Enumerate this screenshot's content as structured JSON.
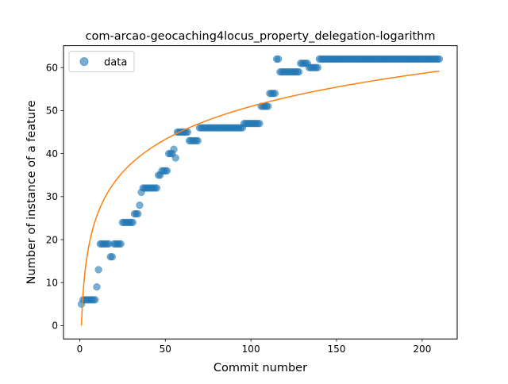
{
  "chart_data": {
    "type": "scatter",
    "title": "com-arcao-geocaching4locus_property_delegation-logarithm",
    "xlabel": "Commit number",
    "ylabel": "Number of instance of a feature",
    "xlim": [
      -9.45,
      220.45
    ],
    "ylim": [
      -3.1,
      65.1
    ],
    "xticks": [
      0,
      50,
      100,
      150,
      200
    ],
    "yticks": [
      0,
      10,
      20,
      30,
      40,
      50,
      60
    ],
    "grid": false,
    "legend": {
      "position": "top-left",
      "entries": [
        "data"
      ]
    },
    "colors": {
      "data": "#1f77b4",
      "fit": "#ff7f0e"
    },
    "series": [
      {
        "name": "data",
        "kind": "scatter",
        "points": [
          [
            1,
            5
          ],
          [
            2,
            6
          ],
          [
            3,
            6
          ],
          [
            4,
            6
          ],
          [
            5,
            6
          ],
          [
            6,
            6
          ],
          [
            7,
            6
          ],
          [
            8,
            6
          ],
          [
            9,
            6
          ],
          [
            10,
            9
          ],
          [
            11,
            13
          ],
          [
            12,
            19
          ],
          [
            13,
            19
          ],
          [
            14,
            19
          ],
          [
            15,
            19
          ],
          [
            16,
            19
          ],
          [
            17,
            19
          ],
          [
            18,
            16
          ],
          [
            19,
            16
          ],
          [
            20,
            19
          ],
          [
            21,
            19
          ],
          [
            22,
            19
          ],
          [
            23,
            19
          ],
          [
            24,
            19
          ],
          [
            25,
            24
          ],
          [
            26,
            24
          ],
          [
            27,
            24
          ],
          [
            28,
            24
          ],
          [
            29,
            24
          ],
          [
            30,
            24
          ],
          [
            31,
            24
          ],
          [
            32,
            26
          ],
          [
            33,
            26
          ],
          [
            34,
            26
          ],
          [
            35,
            28
          ],
          [
            36,
            31
          ],
          [
            37,
            32
          ],
          [
            38,
            32
          ],
          [
            39,
            32
          ],
          [
            40,
            32
          ],
          [
            41,
            32
          ],
          [
            42,
            32
          ],
          [
            43,
            32
          ],
          [
            44,
            32
          ],
          [
            45,
            32
          ],
          [
            46,
            35
          ],
          [
            47,
            35
          ],
          [
            48,
            36
          ],
          [
            49,
            36
          ],
          [
            50,
            36
          ],
          [
            51,
            36
          ],
          [
            52,
            40
          ],
          [
            53,
            40
          ],
          [
            54,
            40
          ],
          [
            55,
            41
          ],
          [
            56,
            39
          ],
          [
            57,
            45
          ],
          [
            58,
            45
          ],
          [
            59,
            45
          ],
          [
            60,
            45
          ],
          [
            61,
            45
          ],
          [
            62,
            45
          ],
          [
            63,
            45
          ],
          [
            64,
            43
          ],
          [
            65,
            43
          ],
          [
            66,
            43
          ],
          [
            67,
            43
          ],
          [
            68,
            43
          ],
          [
            69,
            43
          ],
          [
            70,
            46
          ],
          [
            71,
            46
          ],
          [
            72,
            46
          ],
          [
            73,
            46
          ],
          [
            74,
            46
          ],
          [
            75,
            46
          ],
          [
            76,
            46
          ],
          [
            77,
            46
          ],
          [
            78,
            46
          ],
          [
            79,
            46
          ],
          [
            80,
            46
          ],
          [
            81,
            46
          ],
          [
            82,
            46
          ],
          [
            83,
            46
          ],
          [
            84,
            46
          ],
          [
            85,
            46
          ],
          [
            86,
            46
          ],
          [
            87,
            46
          ],
          [
            88,
            46
          ],
          [
            89,
            46
          ],
          [
            90,
            46
          ],
          [
            91,
            46
          ],
          [
            92,
            46
          ],
          [
            93,
            46
          ],
          [
            94,
            46
          ],
          [
            95,
            46
          ],
          [
            96,
            47
          ],
          [
            97,
            47
          ],
          [
            98,
            47
          ],
          [
            99,
            47
          ],
          [
            100,
            47
          ],
          [
            101,
            47
          ],
          [
            102,
            47
          ],
          [
            103,
            47
          ],
          [
            104,
            47
          ],
          [
            105,
            47
          ],
          [
            106,
            51
          ],
          [
            107,
            51
          ],
          [
            108,
            51
          ],
          [
            109,
            51
          ],
          [
            110,
            51
          ],
          [
            111,
            54
          ],
          [
            112,
            54
          ],
          [
            113,
            54
          ],
          [
            114,
            54
          ],
          [
            115,
            62
          ],
          [
            116,
            62
          ],
          [
            117,
            59
          ],
          [
            118,
            59
          ],
          [
            119,
            59
          ],
          [
            120,
            59
          ],
          [
            121,
            59
          ],
          [
            122,
            59
          ],
          [
            123,
            59
          ],
          [
            124,
            59
          ],
          [
            125,
            59
          ],
          [
            126,
            59
          ],
          [
            127,
            59
          ],
          [
            128,
            59
          ],
          [
            129,
            61
          ],
          [
            130,
            61
          ],
          [
            131,
            61
          ],
          [
            132,
            61
          ],
          [
            133,
            61
          ],
          [
            134,
            60
          ],
          [
            135,
            60
          ],
          [
            136,
            60
          ],
          [
            137,
            60
          ],
          [
            138,
            60
          ],
          [
            139,
            60
          ],
          [
            140,
            62
          ],
          [
            141,
            62
          ],
          [
            142,
            62
          ],
          [
            143,
            62
          ],
          [
            144,
            62
          ],
          [
            145,
            62
          ],
          [
            146,
            62
          ],
          [
            147,
            62
          ],
          [
            148,
            62
          ],
          [
            149,
            62
          ],
          [
            150,
            62
          ],
          [
            151,
            62
          ],
          [
            152,
            62
          ],
          [
            153,
            62
          ],
          [
            154,
            62
          ],
          [
            155,
            62
          ],
          [
            156,
            62
          ],
          [
            157,
            62
          ],
          [
            158,
            62
          ],
          [
            159,
            62
          ],
          [
            160,
            62
          ],
          [
            161,
            62
          ],
          [
            162,
            62
          ],
          [
            163,
            62
          ],
          [
            164,
            62
          ],
          [
            165,
            62
          ],
          [
            166,
            62
          ],
          [
            167,
            62
          ],
          [
            168,
            62
          ],
          [
            169,
            62
          ],
          [
            170,
            62
          ],
          [
            171,
            62
          ],
          [
            172,
            62
          ],
          [
            173,
            62
          ],
          [
            174,
            62
          ],
          [
            175,
            62
          ],
          [
            176,
            62
          ],
          [
            177,
            62
          ],
          [
            178,
            62
          ],
          [
            179,
            62
          ],
          [
            180,
            62
          ],
          [
            181,
            62
          ],
          [
            182,
            62
          ],
          [
            183,
            62
          ],
          [
            184,
            62
          ],
          [
            185,
            62
          ],
          [
            186,
            62
          ],
          [
            187,
            62
          ],
          [
            188,
            62
          ],
          [
            189,
            62
          ],
          [
            190,
            62
          ],
          [
            191,
            62
          ],
          [
            192,
            62
          ],
          [
            193,
            62
          ],
          [
            194,
            62
          ],
          [
            195,
            62
          ],
          [
            196,
            62
          ],
          [
            197,
            62
          ],
          [
            198,
            62
          ],
          [
            199,
            62
          ],
          [
            200,
            62
          ],
          [
            201,
            62
          ],
          [
            202,
            62
          ],
          [
            203,
            62
          ],
          [
            204,
            62
          ],
          [
            205,
            62
          ],
          [
            206,
            62
          ],
          [
            207,
            62
          ],
          [
            208,
            62
          ],
          [
            209,
            62
          ],
          [
            210,
            62
          ]
        ]
      },
      {
        "kind": "line",
        "fit": {
          "model": "logarithm",
          "a": 11.07,
          "b": 0.0,
          "x_start": 1,
          "x_end": 210
        }
      }
    ]
  }
}
